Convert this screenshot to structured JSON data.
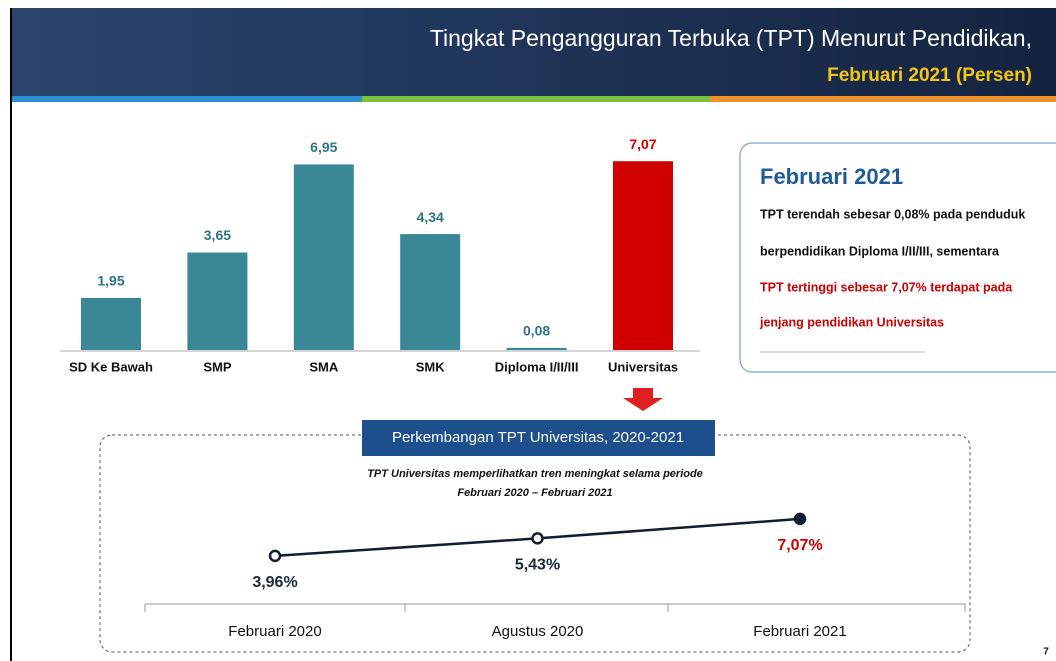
{
  "header": {
    "title": "Tingkat Pengangguran Terbuka (TPT) Menurut Pendidikan,",
    "subtitle": "Februari 2021 (Persen)"
  },
  "callout": {
    "title": "Februari 2021",
    "lines": [
      "TPT terendah sebesar 0,08% pada penduduk",
      "berpendidikan Diploma I/II/III, sementara",
      "TPT tertinggi sebesar 7,07% terdapat pada",
      "jenjang pendidikan Universitas"
    ]
  },
  "page_number": "7",
  "chart_data": [
    {
      "type": "bar",
      "categories": [
        "SD Ke Bawah",
        "SMP",
        "SMA",
        "SMK",
        "Diploma I/II/III",
        "Universitas"
      ],
      "values": [
        1.95,
        3.65,
        6.95,
        4.34,
        0.08,
        7.07
      ],
      "value_labels": [
        "1,95",
        "3,65",
        "6,95",
        "4,34",
        "0,08",
        "7,07"
      ],
      "colors": [
        "#3a8797",
        "#3a8797",
        "#3a8797",
        "#3a8797",
        "#3a8797",
        "#d00000"
      ],
      "label_colors": [
        "#2f7484",
        "#2f7484",
        "#2f7484",
        "#2f7484",
        "#2f7484",
        "#d00000"
      ]
    },
    {
      "type": "line",
      "title": "Perkembangan TPT Universitas, 2020-2021",
      "subtitle": [
        "TPT Universitas memperlihatkan tren meningkat selama periode",
        "Februari 2020 – Februari 2021"
      ],
      "categories": [
        "Februari 2020",
        "Agustus 2020",
        "Februari 2021"
      ],
      "values": [
        3.96,
        5.43,
        7.07
      ],
      "value_labels": [
        "3,96%",
        "5,43%",
        "7,07%"
      ],
      "color": "#0f1e33",
      "label_colors": [
        "#1a2a3a",
        "#1a2a3a",
        "#d00000"
      ]
    }
  ]
}
